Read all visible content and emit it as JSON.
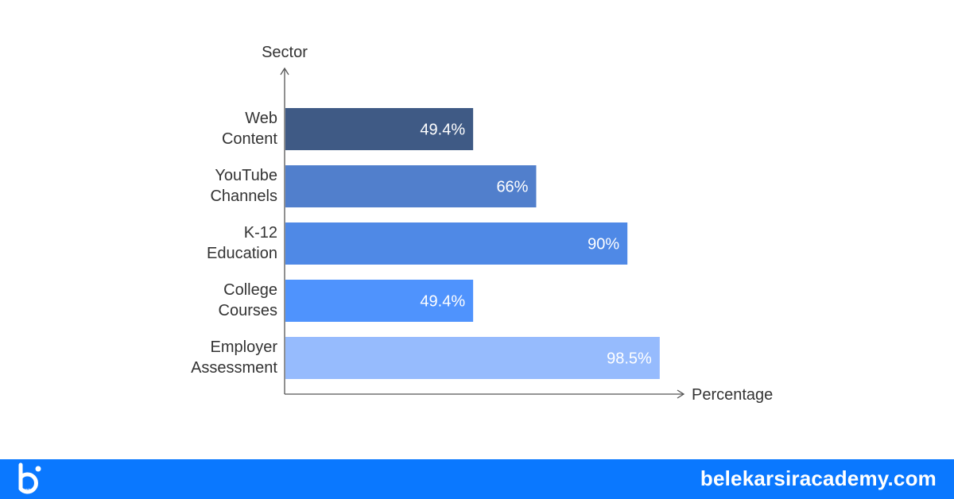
{
  "chart_data": {
    "type": "bar",
    "orientation": "horizontal",
    "ylabel": "Sector",
    "xlabel": "Percentage",
    "categories": [
      [
        "Web",
        "Content"
      ],
      [
        "YouTube",
        "Channels"
      ],
      [
        "K-12",
        "Education"
      ],
      [
        "College",
        "Courses"
      ],
      [
        "Employer",
        "Assessment"
      ]
    ],
    "values": [
      49.4,
      66,
      90,
      49.4,
      98.5
    ],
    "value_labels": [
      "49.4%",
      "66%",
      "90%",
      "49.4%",
      "98.5%"
    ],
    "colors": [
      "#3f5a85",
      "#517fcc",
      "#4f89e6",
      "#4f93fd",
      "#96bbfd"
    ],
    "xlim": [
      0,
      100
    ],
    "grid": false
  },
  "footer": {
    "url": "belekarsiracademy.com",
    "logo_icon": "academy-b-logo-icon",
    "background": "#0a78ff"
  }
}
